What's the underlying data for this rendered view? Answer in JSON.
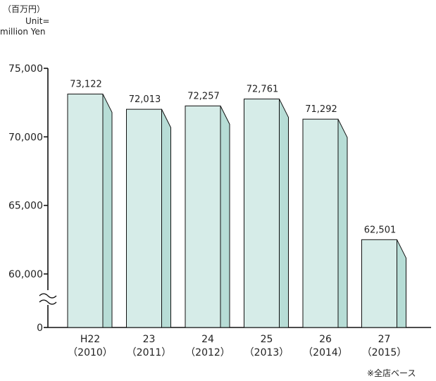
{
  "unit_labels": {
    "jp": "（百万円）",
    "en_line1": "Unit=",
    "en_line2": "million Yen"
  },
  "footnote": "※全店ベース",
  "colors": {
    "bar_front": "#d6ece8",
    "bar_side": "#b7ddd6",
    "stroke": "#111111"
  },
  "chart_data": {
    "type": "bar",
    "categories": [
      [
        "H22",
        "（2010）"
      ],
      [
        "23",
        "（2011）"
      ],
      [
        "24",
        "（2012）"
      ],
      [
        "25",
        "（2013）"
      ],
      [
        "26",
        "（2014）"
      ],
      [
        "27",
        "（2015）"
      ]
    ],
    "values": [
      73122,
      72013,
      72257,
      72761,
      71292,
      62501
    ],
    "value_labels": [
      "73,122",
      "72,013",
      "72,257",
      "72,761",
      "71,292",
      "62,501"
    ],
    "yticks": [
      {
        "value": 0,
        "label": "0"
      },
      {
        "value": 60000,
        "label": "60,000"
      },
      {
        "value": 65000,
        "label": "65,000"
      },
      {
        "value": 70000,
        "label": "70,000"
      },
      {
        "value": 75000,
        "label": "75,000"
      }
    ],
    "ylim": [
      60000,
      75000
    ],
    "axis_break": true,
    "grid": false,
    "bar_style": "3d"
  }
}
